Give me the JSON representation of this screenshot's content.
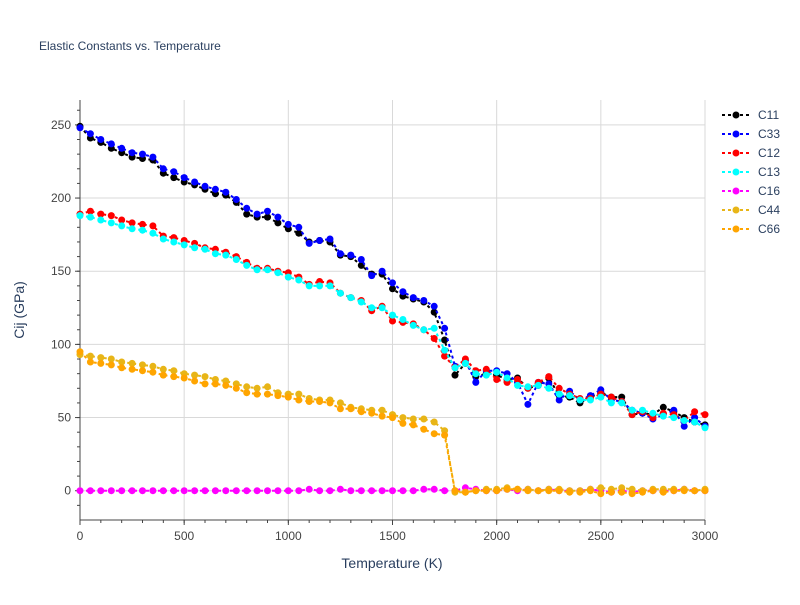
{
  "chart_data": {
    "type": "line",
    "title": "Elastic Constants vs. Temperature",
    "xlabel": "Temperature (K)",
    "ylabel": "Cij (GPa)",
    "xlim": [
      0,
      3000
    ],
    "ylim": [
      -20,
      267
    ],
    "x_ticks": [
      "0",
      "500",
      "1000",
      "1500",
      "2000",
      "2500",
      "3000"
    ],
    "y_ticks": [
      "0",
      "50",
      "100",
      "150",
      "200",
      "250"
    ],
    "grid": true,
    "legend_position": "top-right",
    "series": [
      {
        "name": "C11",
        "color": "#000000",
        "x": [
          0,
          50,
          100,
          150,
          200,
          250,
          300,
          350,
          400,
          450,
          500,
          550,
          600,
          650,
          700,
          750,
          800,
          850,
          900,
          950,
          1000,
          1050,
          1100,
          1150,
          1200,
          1250,
          1300,
          1350,
          1400,
          1450,
          1500,
          1550,
          1600,
          1650,
          1700,
          1750,
          1800,
          1850,
          1900,
          1950,
          2000,
          2050,
          2100,
          2150,
          2200,
          2250,
          2300,
          2350,
          2400,
          2450,
          2500,
          2550,
          2600,
          2650,
          2700,
          2750,
          2800,
          2850,
          2900,
          2950,
          3000
        ],
        "values": [
          249,
          241,
          238,
          234,
          231,
          228,
          227,
          226,
          217,
          214,
          211,
          209,
          206,
          203,
          202,
          197,
          189,
          187,
          187,
          183,
          179,
          176,
          170,
          171,
          170,
          161,
          160,
          154,
          148,
          148,
          138,
          133,
          131,
          129,
          122,
          103,
          79,
          87,
          78,
          80,
          79,
          76,
          77,
          70,
          72,
          77,
          65,
          64,
          60,
          64,
          67,
          64,
          64,
          52,
          53,
          52,
          57,
          54,
          50,
          47,
          45
        ]
      },
      {
        "name": "C33",
        "color": "#0000ff",
        "x": [
          0,
          50,
          100,
          150,
          200,
          250,
          300,
          350,
          400,
          450,
          500,
          550,
          600,
          650,
          700,
          750,
          800,
          850,
          900,
          950,
          1000,
          1050,
          1100,
          1150,
          1200,
          1250,
          1300,
          1350,
          1400,
          1450,
          1500,
          1550,
          1600,
          1650,
          1700,
          1750,
          1800,
          1850,
          1900,
          1950,
          2000,
          2050,
          2100,
          2150,
          2200,
          2250,
          2300,
          2350,
          2400,
          2450,
          2500,
          2550,
          2600,
          2650,
          2700,
          2750,
          2800,
          2850,
          2900,
          2950,
          3000
        ],
        "values": [
          248,
          244,
          240,
          237,
          234,
          231,
          230,
          228,
          220,
          218,
          214,
          211,
          208,
          206,
          204,
          199,
          193,
          189,
          191,
          187,
          182,
          180,
          169,
          171,
          172,
          162,
          161,
          158,
          147,
          150,
          142,
          136,
          132,
          130,
          126,
          111,
          85,
          89,
          74,
          82,
          82,
          80,
          74,
          59,
          74,
          73,
          62,
          68,
          62,
          65,
          69,
          62,
          61,
          55,
          53,
          49,
          52,
          55,
          44,
          50,
          44
        ]
      },
      {
        "name": "C12",
        "color": "#ff0000",
        "x": [
          0,
          50,
          100,
          150,
          200,
          250,
          300,
          350,
          400,
          450,
          500,
          550,
          600,
          650,
          700,
          750,
          800,
          850,
          900,
          950,
          1000,
          1050,
          1100,
          1150,
          1200,
          1250,
          1300,
          1350,
          1400,
          1450,
          1500,
          1550,
          1600,
          1650,
          1700,
          1750,
          1800,
          1850,
          1900,
          1950,
          2000,
          2050,
          2100,
          2150,
          2200,
          2250,
          2300,
          2350,
          2400,
          2450,
          2500,
          2550,
          2600,
          2650,
          2700,
          2750,
          2800,
          2850,
          2900,
          2950,
          3000
        ],
        "values": [
          189,
          191,
          189,
          188,
          185,
          183,
          182,
          181,
          174,
          173,
          171,
          169,
          166,
          165,
          163,
          160,
          156,
          152,
          152,
          150,
          149,
          146,
          141,
          143,
          142,
          135,
          132,
          130,
          123,
          126,
          116,
          115,
          114,
          110,
          104,
          92,
          84,
          90,
          82,
          83,
          76,
          74,
          76,
          70,
          74,
          78,
          70,
          66,
          63,
          63,
          66,
          64,
          61,
          52,
          54,
          50,
          53,
          52,
          48,
          54,
          52
        ]
      },
      {
        "name": "C13",
        "color": "#00ffff",
        "x": [
          0,
          50,
          100,
          150,
          200,
          250,
          300,
          350,
          400,
          450,
          500,
          550,
          600,
          650,
          700,
          750,
          800,
          850,
          900,
          950,
          1000,
          1050,
          1100,
          1150,
          1200,
          1250,
          1300,
          1350,
          1400,
          1450,
          1500,
          1550,
          1600,
          1650,
          1700,
          1750,
          1800,
          1850,
          1900,
          1950,
          2000,
          2050,
          2100,
          2150,
          2200,
          2250,
          2300,
          2350,
          2400,
          2450,
          2500,
          2550,
          2600,
          2650,
          2700,
          2750,
          2800,
          2850,
          2900,
          2950,
          3000
        ],
        "values": [
          188,
          187,
          185,
          183,
          181,
          179,
          178,
          176,
          172,
          170,
          168,
          166,
          165,
          162,
          161,
          158,
          154,
          151,
          151,
          149,
          146,
          144,
          140,
          140,
          140,
          135,
          132,
          129,
          125,
          125,
          120,
          117,
          113,
          110,
          111,
          96,
          84,
          87,
          80,
          79,
          81,
          77,
          72,
          71,
          72,
          70,
          66,
          65,
          62,
          62,
          64,
          60,
          60,
          55,
          55,
          53,
          51,
          50,
          48,
          47,
          43
        ]
      },
      {
        "name": "C16",
        "color": "#ff00ff",
        "x": [
          0,
          50,
          100,
          150,
          200,
          250,
          300,
          350,
          400,
          450,
          500,
          550,
          600,
          650,
          700,
          750,
          800,
          850,
          900,
          950,
          1000,
          1050,
          1100,
          1150,
          1200,
          1250,
          1300,
          1350,
          1400,
          1450,
          1500,
          1550,
          1600,
          1650,
          1700,
          1750,
          1800,
          1850,
          1900,
          1950,
          2000,
          2050,
          2100,
          2150,
          2200,
          2250,
          2300,
          2350,
          2400,
          2450,
          2500,
          2550,
          2600,
          2650,
          2700,
          2750,
          2800,
          2850,
          2900,
          2950,
          3000
        ],
        "values": [
          0,
          0,
          0,
          0,
          0,
          0,
          0,
          0,
          0,
          0,
          0,
          0,
          0,
          0,
          0,
          0,
          0,
          0,
          0,
          0,
          0,
          0,
          1,
          0,
          0,
          1,
          0,
          0,
          0,
          0,
          0,
          0,
          0,
          1,
          1,
          0,
          0,
          2,
          1,
          0,
          0,
          1,
          0,
          1,
          0,
          1,
          0,
          0,
          0,
          1,
          0,
          -1,
          0,
          -1,
          0,
          0,
          0,
          0,
          1,
          0,
          0
        ]
      },
      {
        "name": "C44",
        "color": "#e8b517",
        "x": [
          0,
          50,
          100,
          150,
          200,
          250,
          300,
          350,
          400,
          450,
          500,
          550,
          600,
          650,
          700,
          750,
          800,
          850,
          900,
          950,
          1000,
          1050,
          1100,
          1150,
          1200,
          1250,
          1300,
          1350,
          1400,
          1450,
          1500,
          1550,
          1600,
          1650,
          1700,
          1750,
          1800,
          1850,
          1900,
          1950,
          2000,
          2050,
          2100,
          2150,
          2200,
          2250,
          2300,
          2350,
          2400,
          2450,
          2500,
          2550,
          2600,
          2650,
          2700,
          2750,
          2800,
          2850,
          2900,
          2950,
          3000
        ],
        "values": [
          93,
          92,
          91,
          90,
          88,
          87,
          86,
          85,
          83,
          82,
          80,
          79,
          78,
          76,
          75,
          73,
          71,
          70,
          71,
          67,
          66,
          66,
          63,
          62,
          62,
          60,
          57,
          56,
          55,
          55,
          52,
          50,
          49,
          49,
          47,
          41,
          -1,
          -1,
          0,
          1,
          1,
          2,
          1,
          1,
          0,
          1,
          1,
          0,
          0,
          1,
          2,
          1,
          2,
          1,
          0,
          1,
          1,
          1,
          1,
          0,
          1
        ]
      },
      {
        "name": "C66",
        "color": "#ffa500",
        "x": [
          0,
          50,
          100,
          150,
          200,
          250,
          300,
          350,
          400,
          450,
          500,
          550,
          600,
          650,
          700,
          750,
          800,
          850,
          900,
          950,
          1000,
          1050,
          1100,
          1150,
          1200,
          1250,
          1300,
          1350,
          1400,
          1450,
          1500,
          1550,
          1600,
          1650,
          1700,
          1750,
          1800,
          1850,
          1900,
          1950,
          2000,
          2050,
          2100,
          2150,
          2200,
          2250,
          2300,
          2350,
          2400,
          2450,
          2500,
          2550,
          2600,
          2650,
          2700,
          2750,
          2800,
          2850,
          2900,
          2950,
          3000
        ],
        "values": [
          95,
          88,
          87,
          86,
          84,
          83,
          82,
          81,
          79,
          78,
          77,
          75,
          73,
          73,
          72,
          70,
          67,
          66,
          66,
          65,
          64,
          62,
          61,
          61,
          60,
          56,
          56,
          54,
          53,
          51,
          50,
          46,
          45,
          42,
          39,
          38,
          0,
          -1,
          0,
          0,
          0,
          1,
          1,
          0,
          0,
          0,
          0,
          -1,
          -1,
          0,
          -2,
          -1,
          -1,
          -2,
          -1,
          0,
          -1,
          0,
          0,
          0,
          0
        ]
      }
    ]
  }
}
